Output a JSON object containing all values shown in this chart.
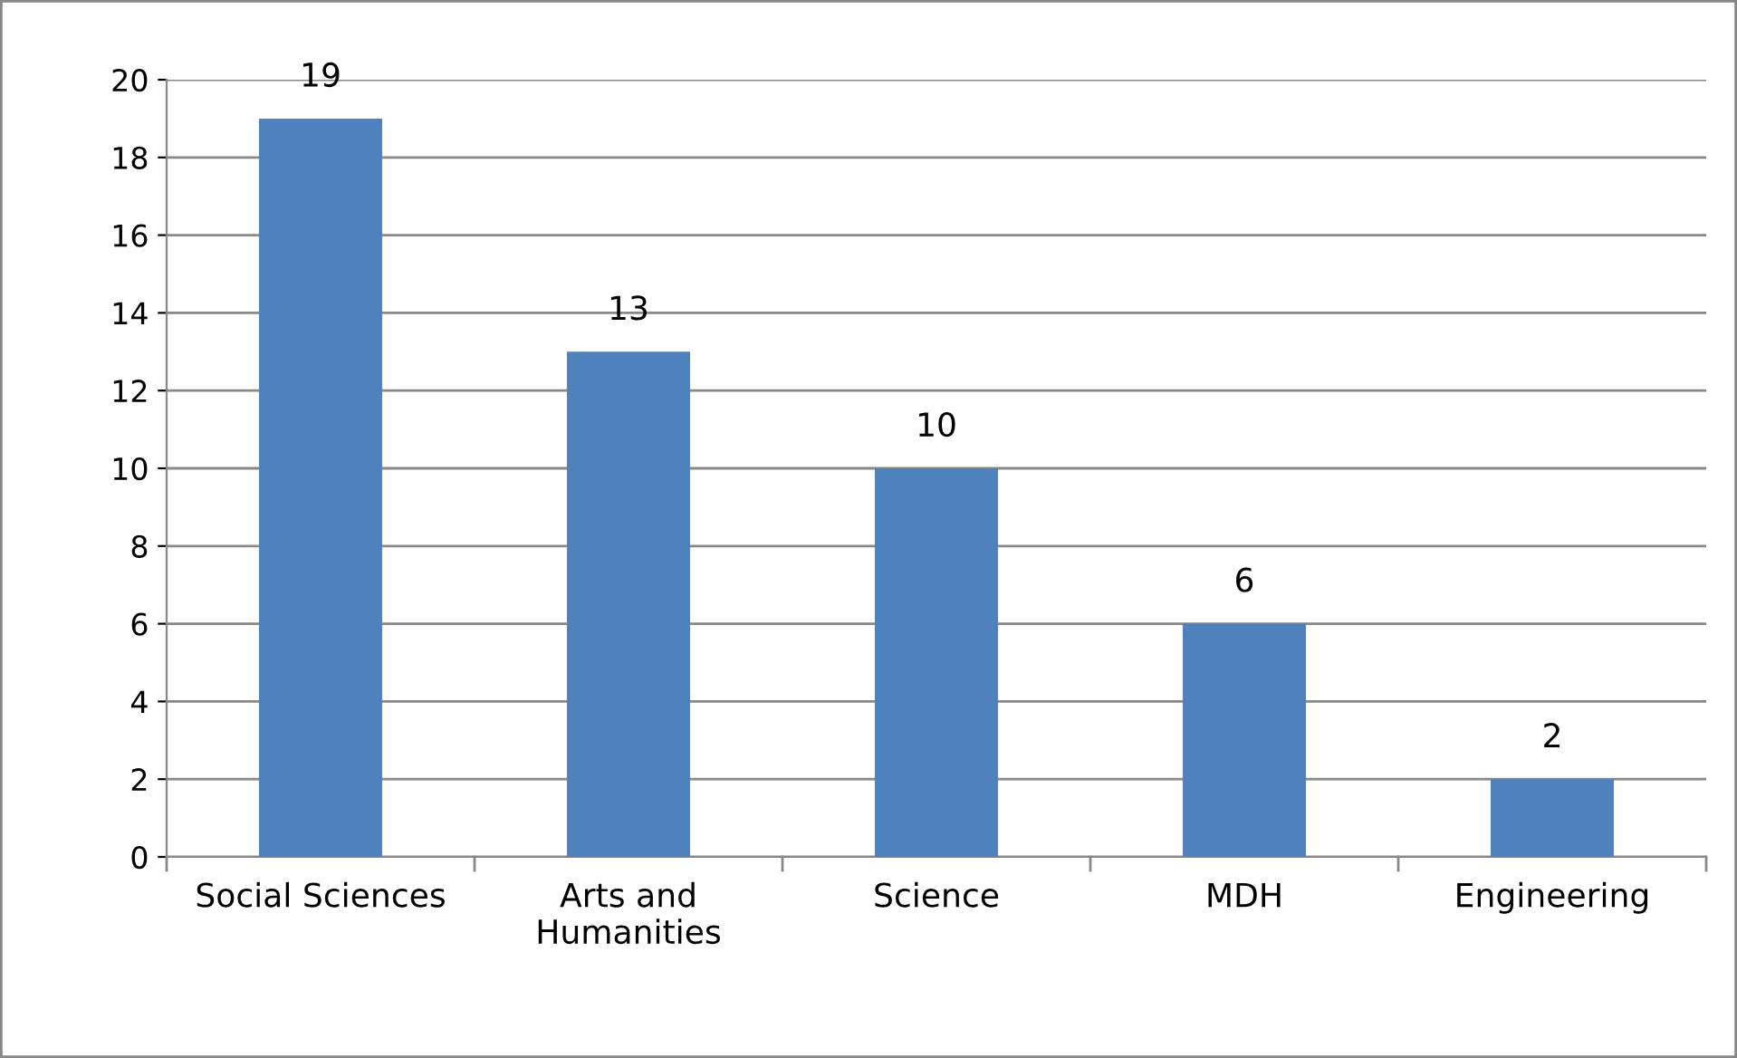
{
  "chart_data": {
    "type": "bar",
    "categories": [
      "Social Sciences",
      "Arts and\nHumanities",
      "Science",
      "MDH",
      "Engineering"
    ],
    "values": [
      19,
      13,
      10,
      6,
      2
    ],
    "color": "#4f81bd",
    "ylim": [
      0,
      20
    ],
    "yticks": [
      0,
      2,
      4,
      6,
      8,
      10,
      12,
      14,
      16,
      18,
      20
    ],
    "grid": "y",
    "data_labels": true,
    "legend": false
  }
}
